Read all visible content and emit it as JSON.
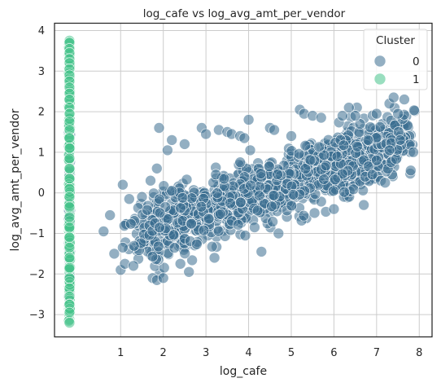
{
  "chart_data": {
    "type": "scatter",
    "title": "log_cafe vs log_avg_amt_per_vendor",
    "xlabel": "log_cafe",
    "ylabel": "log_avg_amt_per_vendor",
    "xlim": [
      -0.55,
      8.3
    ],
    "ylim": [
      -3.55,
      4.18
    ],
    "xticks": [
      1,
      2,
      3,
      4,
      5,
      6,
      7,
      8
    ],
    "yticks": [
      -3,
      -2,
      -1,
      0,
      1,
      2,
      3,
      4
    ],
    "grid": true,
    "legend": {
      "title": "Cluster",
      "placement": "top-right",
      "entries": [
        {
          "label": "0",
          "color": "#3b6d90"
        },
        {
          "label": "1",
          "color": "#45c38a"
        }
      ]
    },
    "series": [
      {
        "name": "0",
        "color": "#3b6d90",
        "trend": {
          "x_range": [
            0.6,
            7.9
          ],
          "intercept": -1.55,
          "slope": 0.37,
          "noise": 0.55
        },
        "points": [
          [
            0.6,
            -0.95
          ],
          [
            0.75,
            -0.55
          ],
          [
            0.85,
            -1.5
          ],
          [
            1.0,
            -1.9
          ],
          [
            1.05,
            0.2
          ],
          [
            1.1,
            -1.75
          ],
          [
            1.05,
            -1.35
          ],
          [
            1.2,
            -0.15
          ],
          [
            1.3,
            -1.8
          ],
          [
            1.5,
            -0.1
          ],
          [
            1.75,
            -2.1
          ],
          [
            1.85,
            -2.15
          ],
          [
            2.0,
            -2.1
          ],
          [
            2.1,
            1.05
          ],
          [
            1.9,
            1.6
          ],
          [
            1.85,
            0.6
          ],
          [
            2.2,
            1.3
          ],
          [
            2.4,
            -1.75
          ],
          [
            2.5,
            1.2
          ],
          [
            2.9,
            1.6
          ],
          [
            3.0,
            1.45
          ],
          [
            3.3,
            1.55
          ],
          [
            3.5,
            1.5
          ],
          [
            3.6,
            1.45
          ],
          [
            3.8,
            1.4
          ],
          [
            3.9,
            1.35
          ],
          [
            4.0,
            1.8
          ],
          [
            4.5,
            1.6
          ],
          [
            4.6,
            1.55
          ],
          [
            4.3,
            -1.45
          ],
          [
            4.7,
            -1.0
          ],
          [
            5.0,
            1.4
          ],
          [
            5.2,
            2.05
          ],
          [
            5.3,
            1.95
          ],
          [
            5.5,
            1.9
          ],
          [
            5.7,
            1.85
          ],
          [
            6.0,
            -0.4
          ],
          [
            6.2,
            1.9
          ],
          [
            6.35,
            2.1
          ],
          [
            6.5,
            1.9
          ],
          [
            6.7,
            -0.3
          ],
          [
            6.8,
            1.3
          ],
          [
            7.0,
            1.95
          ],
          [
            7.1,
            0.3
          ],
          [
            7.2,
            0.25
          ],
          [
            7.3,
            2.2
          ],
          [
            7.4,
            2.35
          ],
          [
            7.5,
            1.95
          ],
          [
            7.55,
            1.3
          ],
          [
            7.65,
            2.3
          ],
          [
            7.8,
            0.55
          ],
          [
            7.3,
            1.05
          ],
          [
            7.0,
            0.8
          ],
          [
            6.9,
            0.45
          ],
          [
            3.2,
            -1.6
          ],
          [
            2.6,
            -1.95
          ],
          [
            2.2,
            0.05
          ],
          [
            1.7,
            0.3
          ]
        ]
      },
      {
        "name": "1",
        "color": "#45c38a",
        "x": -0.2,
        "y_range": [
          -3.2,
          3.75
        ],
        "points": [
          [
            -0.2,
            3.75
          ],
          [
            -0.2,
            3.7
          ],
          [
            -0.2,
            3.55
          ],
          [
            -0.2,
            3.45
          ],
          [
            -0.2,
            3.3
          ],
          [
            -0.2,
            3.2
          ],
          [
            -0.2,
            3.05
          ],
          [
            -0.2,
            2.9
          ],
          [
            -0.2,
            2.75
          ],
          [
            -0.2,
            2.6
          ],
          [
            -0.2,
            2.45
          ],
          [
            -0.2,
            2.3
          ],
          [
            -0.2,
            2.1
          ],
          [
            -0.2,
            1.95
          ],
          [
            -0.2,
            1.75
          ],
          [
            -0.2,
            1.55
          ],
          [
            -0.2,
            1.35
          ],
          [
            -0.2,
            1.1
          ],
          [
            -0.2,
            0.85
          ],
          [
            -0.2,
            0.6
          ],
          [
            -0.2,
            0.35
          ],
          [
            -0.2,
            0.1
          ],
          [
            -0.2,
            -0.1
          ],
          [
            -0.2,
            -0.35
          ],
          [
            -0.2,
            -0.6
          ],
          [
            -0.2,
            -0.85
          ],
          [
            -0.2,
            -1.1
          ],
          [
            -0.2,
            -1.35
          ],
          [
            -0.2,
            -1.6
          ],
          [
            -0.2,
            -1.85
          ],
          [
            -0.2,
            -2.1
          ],
          [
            -0.2,
            -2.35
          ],
          [
            -0.2,
            -2.55
          ],
          [
            -0.2,
            -2.75
          ],
          [
            -0.2,
            -2.95
          ],
          [
            -0.2,
            -3.2
          ]
        ]
      }
    ]
  }
}
